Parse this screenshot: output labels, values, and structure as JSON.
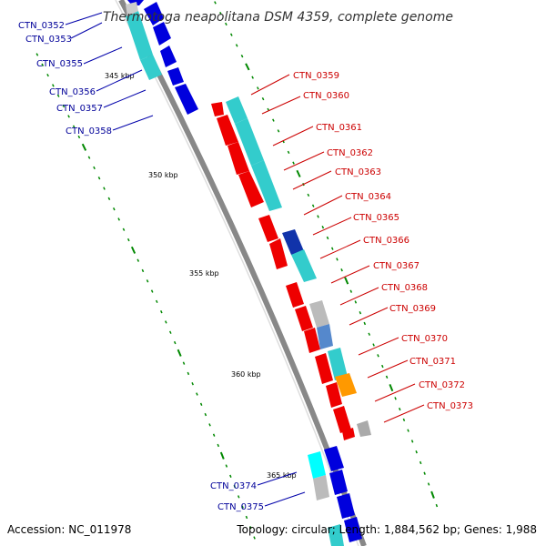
{
  "title": "Thermotoga neapolitana DSM 4359, complete genome",
  "accession": "Accession: NC_011978",
  "summary": "Topology: circular; Length: 1,884,562 bp; Genes: 1,988",
  "colors": {
    "backbone": "#888888",
    "forward_gene": "#ee0000",
    "reverse_gene": "#0000dd",
    "cds_cyan": "#33cccc",
    "cds_orange": "#ff9900",
    "cds_gray": "#bbbbbb",
    "cds_steel": "#5588cc",
    "tick": "#008800",
    "label_forward": "#cc0000",
    "label_reverse": "#000099"
  },
  "scale": {
    "tick_labels": [
      "345 kbp",
      "350 kbp",
      "355 kbp",
      "360 kbp",
      "365 kbp"
    ]
  },
  "genes_reverse_labels": [
    "CTN_0352",
    "CTN_0353",
    "CTN_0355",
    "CTN_0356",
    "CTN_0357",
    "CTN_0358",
    "CTN_0374",
    "CTN_0375"
  ],
  "genes_forward_labels": [
    "CTN_0359",
    "CTN_0360",
    "CTN_0361",
    "CTN_0362",
    "CTN_0363",
    "CTN_0364",
    "CTN_0365",
    "CTN_0366",
    "CTN_0367",
    "CTN_0368",
    "CTN_0369",
    "CTN_0370",
    "CTN_0371",
    "CTN_0372",
    "CTN_0373"
  ]
}
